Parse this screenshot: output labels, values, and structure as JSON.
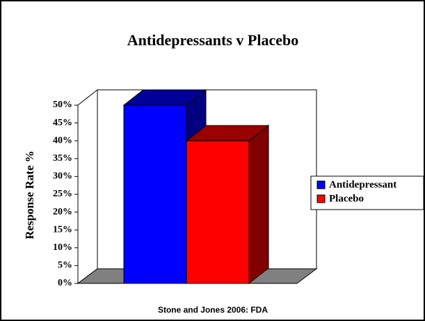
{
  "chart_data": {
    "type": "bar3d",
    "title": "Antidepressants v Placebo",
    "y_label": "Response Rate %",
    "source": "Stone and Jones 2006: FDA",
    "series": [
      {
        "name": "Antidepressant",
        "color": "#0000ff",
        "values": [
          50
        ]
      },
      {
        "name": "Placebo",
        "color": "#ff0000",
        "values": [
          40
        ]
      }
    ],
    "ylim": [
      0,
      50
    ],
    "yticks": [
      {
        "value": 0,
        "label": "0%"
      },
      {
        "value": 5,
        "label": "5%"
      },
      {
        "value": 10,
        "label": "10%"
      },
      {
        "value": 15,
        "label": "15%"
      },
      {
        "value": 20,
        "label": "20%"
      },
      {
        "value": 25,
        "label": "25%"
      },
      {
        "value": 30,
        "label": "30%"
      },
      {
        "value": 35,
        "label": "35%"
      },
      {
        "value": 40,
        "label": "40%"
      },
      {
        "value": 45,
        "label": "45%"
      },
      {
        "value": 50,
        "label": "50%"
      }
    ],
    "legend": "right"
  }
}
